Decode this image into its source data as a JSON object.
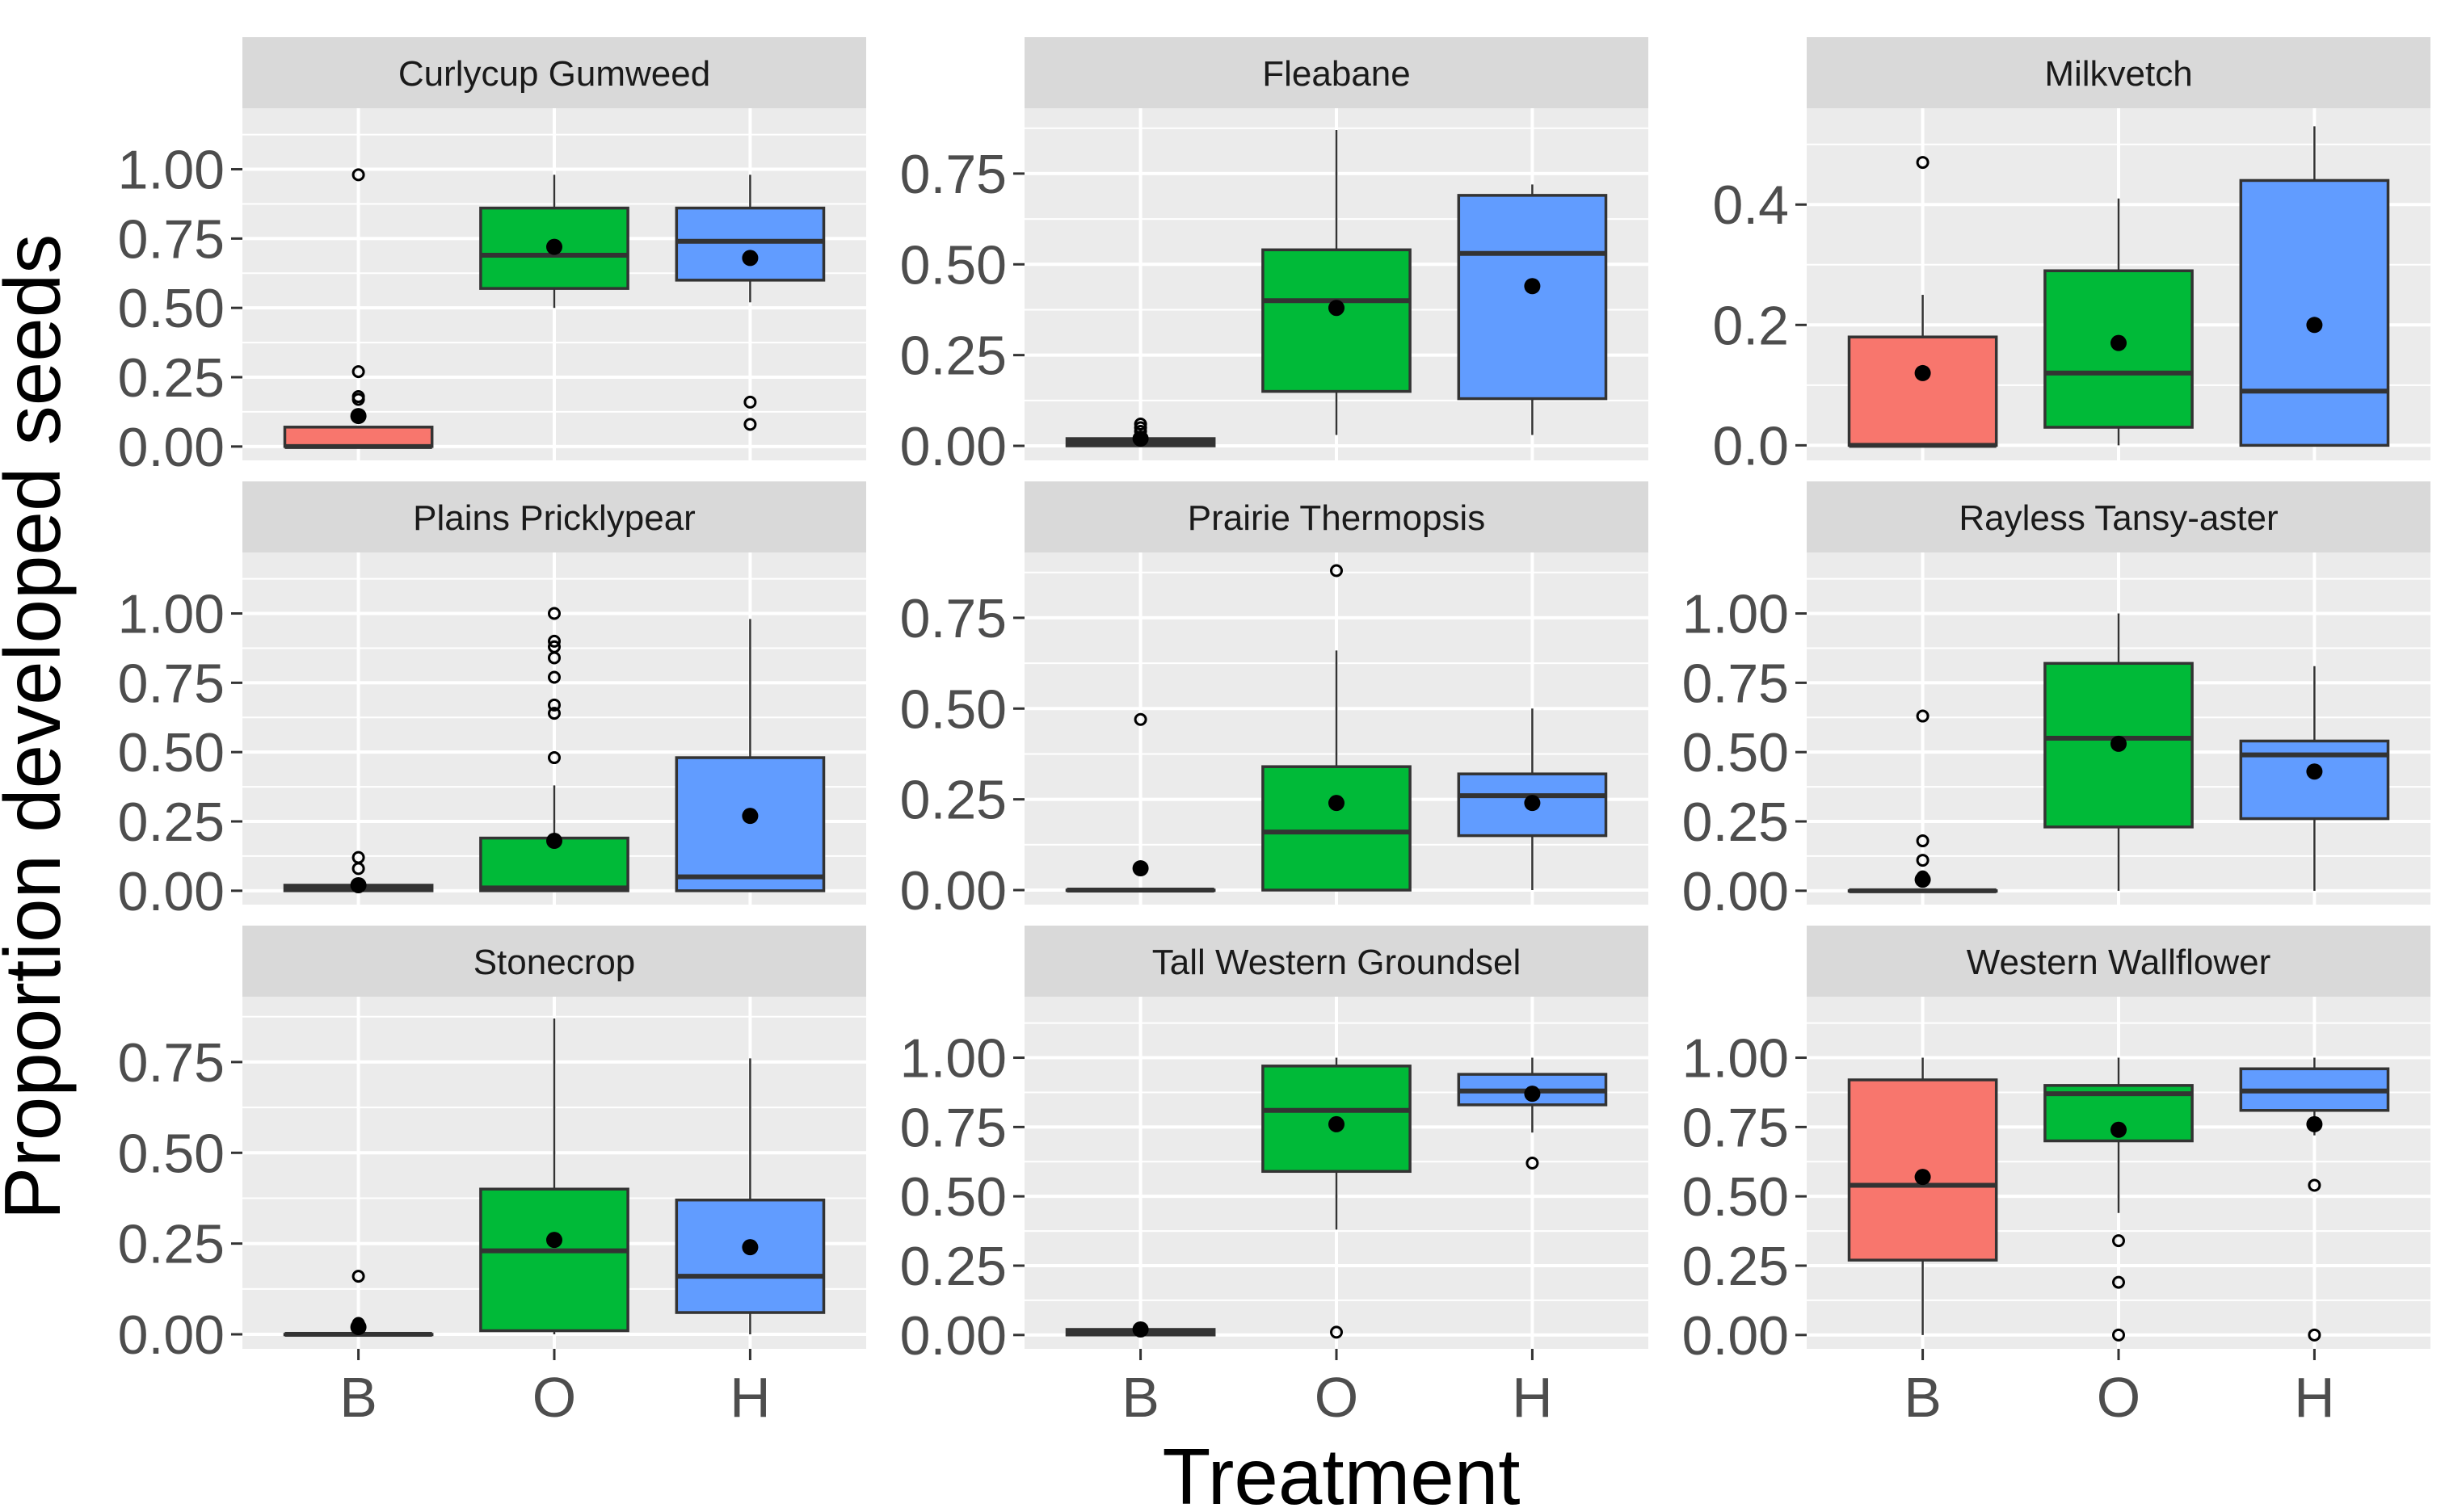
{
  "figure": {
    "xlabel": "Treatment",
    "ylabel": "Proportion developed seeds",
    "treatments": [
      "B",
      "O",
      "H"
    ],
    "colors": {
      "B": "#F8766D",
      "O": "#00BA38",
      "H": "#619CFF"
    },
    "panel_background": "#EBEBEB",
    "strip_background": "#D9D9D9",
    "box_stroke": "#333333",
    "mean_marker": "#000000"
  },
  "chart_data": [
    {
      "type": "boxplot",
      "title": "Curlycup Gumweed",
      "ylim": [
        -0.05,
        1.22
      ],
      "yticks": [
        0,
        0.25,
        0.5,
        0.75,
        1
      ],
      "ytick_labels": [
        "0.00",
        "0.25",
        "0.50",
        "0.75",
        "1.00"
      ],
      "boxes": [
        {
          "group": "B",
          "q1": 0,
          "median": 0,
          "q3": 0.07,
          "whisker_low": 0,
          "whisker_high": 0.07,
          "mean": 0.11,
          "outliers": [
            0.98,
            0.27,
            0.18,
            0.17,
            0.11
          ]
        },
        {
          "group": "O",
          "q1": 0.57,
          "median": 0.69,
          "q3": 0.86,
          "whisker_low": 0.5,
          "whisker_high": 0.98,
          "mean": 0.72,
          "outliers": []
        },
        {
          "group": "H",
          "q1": 0.6,
          "median": 0.74,
          "q3": 0.86,
          "whisker_low": 0.52,
          "whisker_high": 0.98,
          "mean": 0.68,
          "outliers": [
            0.16,
            0.08
          ]
        }
      ]
    },
    {
      "type": "boxplot",
      "title": "Fleabane",
      "ylim": [
        -0.04,
        0.93
      ],
      "yticks": [
        0,
        0.25,
        0.5,
        0.75
      ],
      "ytick_labels": [
        "0.00",
        "0.25",
        "0.50",
        "0.75"
      ],
      "boxes": [
        {
          "group": "B",
          "q1": 0,
          "median": 0.01,
          "q3": 0.02,
          "whisker_low": 0,
          "whisker_high": 0.02,
          "mean": 0.02,
          "outliers": [
            0.06,
            0.05,
            0.04
          ]
        },
        {
          "group": "O",
          "q1": 0.15,
          "median": 0.4,
          "q3": 0.54,
          "whisker_low": 0.03,
          "whisker_high": 0.87,
          "mean": 0.38,
          "outliers": []
        },
        {
          "group": "H",
          "q1": 0.13,
          "median": 0.53,
          "q3": 0.69,
          "whisker_low": 0.03,
          "whisker_high": 0.72,
          "mean": 0.44,
          "outliers": []
        }
      ]
    },
    {
      "type": "boxplot",
      "title": "Milkvetch",
      "ylim": [
        -0.025,
        0.56
      ],
      "yticks": [
        0,
        0.2,
        0.4
      ],
      "ytick_labels": [
        "0.0",
        "0.2",
        "0.4"
      ],
      "boxes": [
        {
          "group": "B",
          "q1": 0,
          "median": 0,
          "q3": 0.18,
          "whisker_low": 0,
          "whisker_high": 0.25,
          "mean": 0.12,
          "outliers": [
            0.47
          ]
        },
        {
          "group": "O",
          "q1": 0.03,
          "median": 0.12,
          "q3": 0.29,
          "whisker_low": 0,
          "whisker_high": 0.41,
          "mean": 0.17,
          "outliers": []
        },
        {
          "group": "H",
          "q1": 0,
          "median": 0.09,
          "q3": 0.44,
          "whisker_low": 0,
          "whisker_high": 0.53,
          "mean": 0.2,
          "outliers": []
        }
      ]
    },
    {
      "type": "boxplot",
      "title": "Plains Pricklypear",
      "ylim": [
        -0.05,
        1.22
      ],
      "yticks": [
        0,
        0.25,
        0.5,
        0.75,
        1
      ],
      "ytick_labels": [
        "0.00",
        "0.25",
        "0.50",
        "0.75",
        "1.00"
      ],
      "boxes": [
        {
          "group": "B",
          "q1": 0,
          "median": 0.01,
          "q3": 0.02,
          "whisker_low": 0,
          "whisker_high": 0.02,
          "mean": 0.02,
          "outliers": [
            0.12,
            0.08
          ]
        },
        {
          "group": "O",
          "q1": 0,
          "median": 0.01,
          "q3": 0.19,
          "whisker_low": 0,
          "whisker_high": 0.38,
          "mean": 0.18,
          "outliers": [
            1.0,
            0.9,
            0.88,
            0.84,
            0.77,
            0.67,
            0.64,
            0.48
          ]
        },
        {
          "group": "H",
          "q1": 0,
          "median": 0.05,
          "q3": 0.48,
          "whisker_low": 0,
          "whisker_high": 0.98,
          "mean": 0.27,
          "outliers": []
        }
      ]
    },
    {
      "type": "boxplot",
      "title": "Prairie Thermopsis",
      "ylim": [
        -0.04,
        0.93
      ],
      "yticks": [
        0,
        0.25,
        0.5,
        0.75
      ],
      "ytick_labels": [
        "0.00",
        "0.25",
        "0.50",
        "0.75"
      ],
      "boxes": [
        {
          "group": "B",
          "q1": 0,
          "median": 0,
          "q3": 0,
          "whisker_low": 0,
          "whisker_high": 0,
          "mean": 0.06,
          "outliers": [
            0.47,
            0.06
          ]
        },
        {
          "group": "O",
          "q1": 0,
          "median": 0.16,
          "q3": 0.34,
          "whisker_low": 0,
          "whisker_high": 0.66,
          "mean": 0.24,
          "outliers": [
            0.88
          ]
        },
        {
          "group": "H",
          "q1": 0.15,
          "median": 0.26,
          "q3": 0.32,
          "whisker_low": 0,
          "whisker_high": 0.5,
          "mean": 0.24,
          "outliers": []
        }
      ]
    },
    {
      "type": "boxplot",
      "title": "Rayless Tansy-aster",
      "ylim": [
        -0.05,
        1.22
      ],
      "yticks": [
        0,
        0.25,
        0.5,
        0.75,
        1
      ],
      "ytick_labels": [
        "0.00",
        "0.25",
        "0.50",
        "0.75",
        "1.00"
      ],
      "boxes": [
        {
          "group": "B",
          "q1": 0,
          "median": 0,
          "q3": 0,
          "whisker_low": 0,
          "whisker_high": 0,
          "mean": 0.04,
          "outliers": [
            0.63,
            0.18,
            0.11,
            0.05
          ]
        },
        {
          "group": "O",
          "q1": 0.23,
          "median": 0.55,
          "q3": 0.82,
          "whisker_low": 0,
          "whisker_high": 1.0,
          "mean": 0.53,
          "outliers": []
        },
        {
          "group": "H",
          "q1": 0.26,
          "median": 0.49,
          "q3": 0.54,
          "whisker_low": 0,
          "whisker_high": 0.81,
          "mean": 0.43,
          "outliers": []
        }
      ]
    },
    {
      "type": "boxplot",
      "title": "Stonecrop",
      "ylim": [
        -0.04,
        0.93
      ],
      "yticks": [
        0,
        0.25,
        0.5,
        0.75
      ],
      "ytick_labels": [
        "0.00",
        "0.25",
        "0.50",
        "0.75"
      ],
      "boxes": [
        {
          "group": "B",
          "q1": 0,
          "median": 0,
          "q3": 0,
          "whisker_low": 0,
          "whisker_high": 0,
          "mean": 0.02,
          "outliers": [
            0.16,
            0.03
          ]
        },
        {
          "group": "O",
          "q1": 0.01,
          "median": 0.23,
          "q3": 0.4,
          "whisker_low": 0,
          "whisker_high": 0.87,
          "mean": 0.26,
          "outliers": []
        },
        {
          "group": "H",
          "q1": 0.06,
          "median": 0.16,
          "q3": 0.37,
          "whisker_low": 0,
          "whisker_high": 0.76,
          "mean": 0.24,
          "outliers": []
        }
      ]
    },
    {
      "type": "boxplot",
      "title": "Tall Western Groundsel",
      "ylim": [
        -0.05,
        1.22
      ],
      "yticks": [
        0,
        0.25,
        0.5,
        0.75,
        1
      ],
      "ytick_labels": [
        "0.00",
        "0.25",
        "0.50",
        "0.75",
        "1.00"
      ],
      "boxes": [
        {
          "group": "B",
          "q1": 0,
          "median": 0.01,
          "q3": 0.02,
          "whisker_low": 0,
          "whisker_high": 0.02,
          "mean": 0.02,
          "outliers": []
        },
        {
          "group": "O",
          "q1": 0.59,
          "median": 0.81,
          "q3": 0.97,
          "whisker_low": 0.38,
          "whisker_high": 1.0,
          "mean": 0.76,
          "outliers": [
            0.01
          ]
        },
        {
          "group": "H",
          "q1": 0.83,
          "median": 0.88,
          "q3": 0.94,
          "whisker_low": 0.73,
          "whisker_high": 1.0,
          "mean": 0.87,
          "outliers": [
            0.62
          ]
        }
      ]
    },
    {
      "type": "boxplot",
      "title": "Western Wallflower",
      "ylim": [
        -0.05,
        1.22
      ],
      "yticks": [
        0,
        0.25,
        0.5,
        0.75,
        1
      ],
      "ytick_labels": [
        "0.00",
        "0.25",
        "0.50",
        "0.75",
        "1.00"
      ],
      "boxes": [
        {
          "group": "B",
          "q1": 0.27,
          "median": 0.54,
          "q3": 0.92,
          "whisker_low": 0,
          "whisker_high": 1.0,
          "mean": 0.57,
          "outliers": []
        },
        {
          "group": "O",
          "q1": 0.7,
          "median": 0.87,
          "q3": 0.9,
          "whisker_low": 0.44,
          "whisker_high": 1.0,
          "mean": 0.74,
          "outliers": [
            0.34,
            0.19,
            0.0
          ]
        },
        {
          "group": "H",
          "q1": 0.81,
          "median": 0.88,
          "q3": 0.96,
          "whisker_low": 0.72,
          "whisker_high": 1.0,
          "mean": 0.76,
          "outliers": [
            0.54,
            0.0
          ]
        }
      ]
    }
  ]
}
